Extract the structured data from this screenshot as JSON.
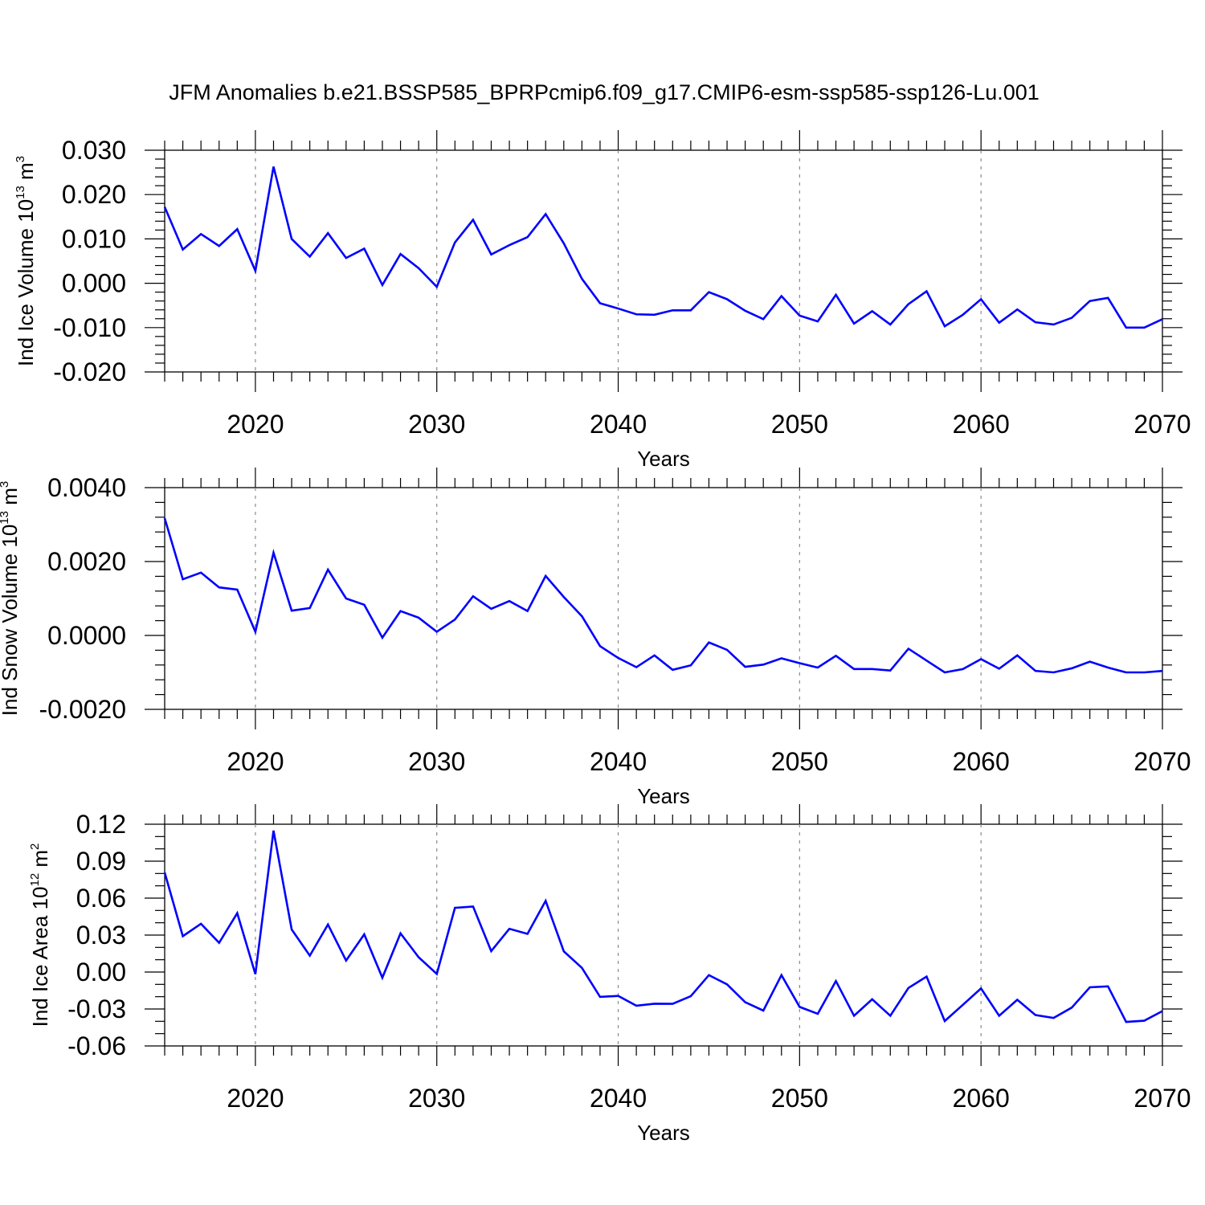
{
  "title": "JFM Anomalies b.e21.BSSP585_BPRPcmip6.f09_g17.CMIP6-esm-ssp585-ssp126-Lu.001",
  "colors": {
    "line": "#0000ff",
    "axis": "#000000",
    "grid": "#8c8c8c"
  },
  "chart_data": [
    {
      "type": "line",
      "title": "JFM Anomalies b.e21.BSSP585_BPRPcmip6.f09_g17.CMIP6-esm-ssp585-ssp126-Lu.001",
      "xlabel": "Years",
      "ylabel": {
        "text": "Ind Ice Volume 10",
        "sup": "13",
        "unit": " m",
        "unit_sup": "3"
      },
      "xlim": [
        2015,
        2070
      ],
      "ylim": [
        -0.02,
        0.03
      ],
      "xticks": [
        "2020",
        "2030",
        "2040",
        "2050",
        "2060",
        "2070"
      ],
      "yticks": [
        "0.030",
        "0.020",
        "0.010",
        "0.000",
        "-0.010",
        "-0.020"
      ],
      "grid": "vertical dashed at major x ticks",
      "x": [
        2015,
        2016,
        2017,
        2018,
        2019,
        2020,
        2021,
        2022,
        2023,
        2024,
        2025,
        2026,
        2027,
        2028,
        2029,
        2030,
        2031,
        2032,
        2033,
        2034,
        2035,
        2036,
        2037,
        2038,
        2039,
        2040,
        2041,
        2042,
        2043,
        2044,
        2045,
        2046,
        2047,
        2048,
        2049,
        2050,
        2051,
        2052,
        2053,
        2054,
        2055,
        2056,
        2057,
        2058,
        2059,
        2060,
        2061,
        2062,
        2063,
        2064,
        2065,
        2066,
        2067,
        2068,
        2069,
        2070
      ],
      "series": [
        {
          "values": [
            0.0172,
            0.0076,
            0.0111,
            0.0084,
            0.0122,
            0.0028,
            0.0263,
            0.01,
            0.006,
            0.0113,
            0.0057,
            0.0078,
            -0.0004,
            0.0066,
            0.0034,
            -0.0008,
            0.0092,
            0.0143,
            0.0065,
            0.0086,
            0.0104,
            0.0156,
            0.009,
            0.001,
            -0.0045,
            -0.0057,
            -0.007,
            -0.0071,
            -0.0061,
            -0.0061,
            -0.002,
            -0.0036,
            -0.0062,
            -0.0081,
            -0.0029,
            -0.0073,
            -0.0086,
            -0.0026,
            -0.0091,
            -0.0063,
            -0.0093,
            -0.0047,
            -0.0018,
            -0.0097,
            -0.0071,
            -0.0036,
            -0.0089,
            -0.0059,
            -0.0088,
            -0.0093,
            -0.0078,
            -0.004,
            -0.0033,
            -0.01,
            -0.01,
            -0.0081
          ]
        }
      ]
    },
    {
      "type": "line",
      "xlabel": "Years",
      "ylabel": {
        "text": "Ind Snow Volume 10",
        "sup": "13",
        "unit": " m",
        "unit_sup": "3"
      },
      "xlim": [
        2015,
        2070
      ],
      "ylim": [
        -0.002,
        0.004
      ],
      "xticks": [
        "2020",
        "2030",
        "2040",
        "2050",
        "2060",
        "2070"
      ],
      "yticks": [
        "0.0040",
        "0.0020",
        "0.0000",
        "-0.0020"
      ],
      "grid": "vertical dashed at major x ticks",
      "x": [
        2015,
        2016,
        2017,
        2018,
        2019,
        2020,
        2021,
        2022,
        2023,
        2024,
        2025,
        2026,
        2027,
        2028,
        2029,
        2030,
        2031,
        2032,
        2033,
        2034,
        2035,
        2036,
        2037,
        2038,
        2039,
        2040,
        2041,
        2042,
        2043,
        2044,
        2045,
        2046,
        2047,
        2048,
        2049,
        2050,
        2051,
        2052,
        2053,
        2054,
        2055,
        2056,
        2057,
        2058,
        2059,
        2060,
        2061,
        2062,
        2063,
        2064,
        2065,
        2066,
        2067,
        2068,
        2069,
        2070
      ],
      "series": [
        {
          "values": [
            0.00317,
            0.00152,
            0.0017,
            0.0013,
            0.00124,
            0.0001,
            0.00224,
            0.00067,
            0.00074,
            0.00178,
            0.001,
            0.00083,
            -6e-05,
            0.00066,
            0.00048,
            0.0001,
            0.00043,
            0.00106,
            0.00072,
            0.00093,
            0.00066,
            0.00161,
            0.00104,
            0.00052,
            -0.00029,
            -0.00061,
            -0.00086,
            -0.00054,
            -0.00093,
            -0.00081,
            -0.00019,
            -0.00039,
            -0.00085,
            -0.00079,
            -0.00062,
            -0.00075,
            -0.00087,
            -0.00055,
            -0.00091,
            -0.00091,
            -0.00095,
            -0.00036,
            -0.00068,
            -0.001,
            -0.00091,
            -0.00064,
            -0.0009,
            -0.00054,
            -0.00096,
            -0.001,
            -0.00089,
            -0.00071,
            -0.00087,
            -0.001,
            -0.001,
            -0.00096
          ]
        }
      ]
    },
    {
      "type": "line",
      "xlabel": "Years",
      "ylabel": {
        "text": "Ind Ice Area 10",
        "sup": "12",
        "unit": " m",
        "unit_sup": "2"
      },
      "xlim": [
        2015,
        2070
      ],
      "ylim": [
        -0.06,
        0.12
      ],
      "xticks": [
        "2020",
        "2030",
        "2040",
        "2050",
        "2060",
        "2070"
      ],
      "yticks": [
        "0.12",
        "0.09",
        "0.06",
        "0.03",
        "0.00",
        "-0.03",
        "-0.06"
      ],
      "grid": "vertical dashed at major x ticks",
      "x": [
        2015,
        2016,
        2017,
        2018,
        2019,
        2020,
        2021,
        2022,
        2023,
        2024,
        2025,
        2026,
        2027,
        2028,
        2029,
        2030,
        2031,
        2032,
        2033,
        2034,
        2035,
        2036,
        2037,
        2038,
        2039,
        2040,
        2041,
        2042,
        2043,
        2044,
        2045,
        2046,
        2047,
        2048,
        2049,
        2050,
        2051,
        2052,
        2053,
        2054,
        2055,
        2056,
        2057,
        2058,
        2059,
        2060,
        2061,
        2062,
        2063,
        2064,
        2065,
        2066,
        2067,
        2068,
        2069,
        2070
      ],
      "series": [
        {
          "values": [
            0.0808,
            0.0291,
            0.0392,
            0.0237,
            0.0478,
            -0.0017,
            0.1148,
            0.0346,
            0.0133,
            0.0386,
            0.0093,
            0.0306,
            -0.0046,
            0.0314,
            0.012,
            -0.0015,
            0.0521,
            0.0532,
            0.017,
            0.0351,
            0.031,
            0.0578,
            0.0168,
            0.0034,
            -0.0202,
            -0.0194,
            -0.0273,
            -0.0257,
            -0.0258,
            -0.0196,
            -0.0025,
            -0.01,
            -0.0245,
            -0.0313,
            -0.0025,
            -0.0283,
            -0.0339,
            -0.0073,
            -0.0355,
            -0.0221,
            -0.0355,
            -0.0129,
            -0.0037,
            -0.0398,
            -0.0266,
            -0.0133,
            -0.0355,
            -0.0225,
            -0.0349,
            -0.0373,
            -0.0289,
            -0.0124,
            -0.0116,
            -0.0405,
            -0.0395,
            -0.0317
          ]
        }
      ]
    }
  ]
}
